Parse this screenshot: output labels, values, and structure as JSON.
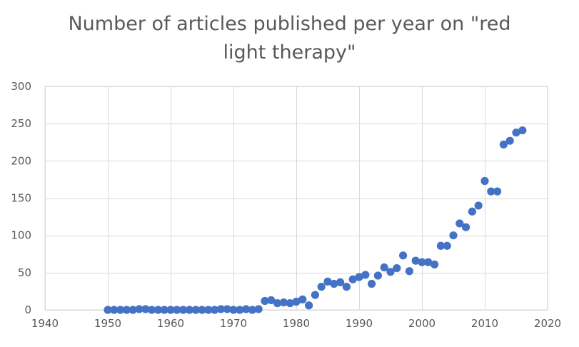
{
  "chart_data": {
    "type": "scatter",
    "title_line1": "Number of articles published per year on \"red",
    "title_line2": "light therapy\"",
    "xlabel": "",
    "ylabel": "",
    "xlim": [
      1940,
      2020
    ],
    "ylim": [
      0,
      300
    ],
    "xticks": [
      1940,
      1950,
      1960,
      1970,
      1980,
      1990,
      2000,
      2010,
      2020
    ],
    "yticks": [
      0,
      50,
      100,
      150,
      200,
      250,
      300
    ],
    "grid": true,
    "marker_color": "#4472C4",
    "series": [
      {
        "x": [
          1950,
          1951,
          1952,
          1953,
          1954,
          1955,
          1956,
          1957,
          1958,
          1959,
          1960,
          1961,
          1962,
          1963,
          1964,
          1965,
          1966,
          1967,
          1968,
          1969,
          1970,
          1971,
          1972,
          1973,
          1974,
          1975,
          1976,
          1977,
          1978,
          1979,
          1980,
          1981,
          1982,
          1983,
          1984,
          1985,
          1986,
          1987,
          1988,
          1989,
          1990,
          1991,
          1992,
          1993,
          1994,
          1995,
          1996,
          1997,
          1998,
          1999,
          2000,
          2001,
          2002,
          2003,
          2004,
          2005,
          2006,
          2007,
          2008,
          2009,
          2010,
          2011,
          2012,
          2013,
          2014,
          2015,
          2016
        ],
        "y": [
          0,
          0,
          0,
          0,
          0,
          1,
          1,
          0,
          0,
          0,
          0,
          0,
          0,
          0,
          0,
          0,
          0,
          0,
          1,
          1,
          0,
          0,
          1,
          0,
          1,
          12,
          13,
          9,
          10,
          9,
          11,
          14,
          6,
          20,
          31,
          38,
          35,
          37,
          31,
          41,
          44,
          47,
          35,
          46,
          57,
          51,
          56,
          73,
          52,
          66,
          64,
          64,
          61,
          86,
          86,
          100,
          116,
          111,
          132,
          140,
          173,
          159,
          159,
          222,
          227,
          238,
          241
        ]
      }
    ]
  }
}
